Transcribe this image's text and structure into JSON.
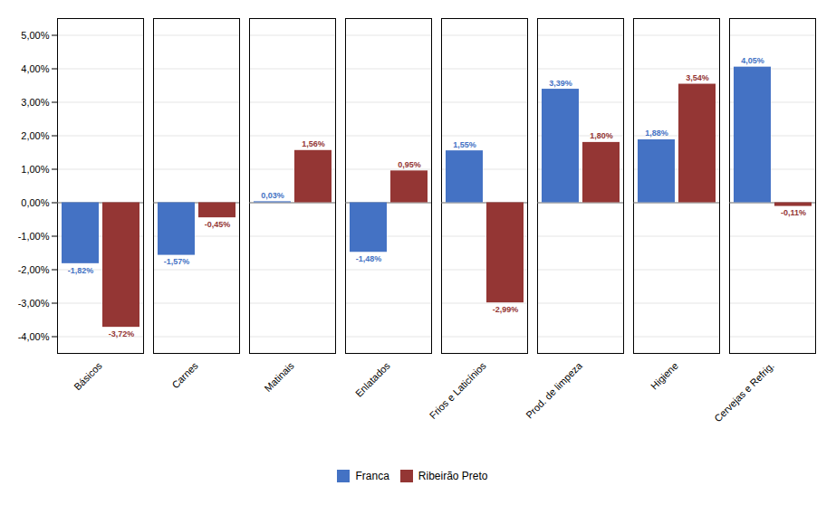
{
  "chart_data": {
    "type": "bar",
    "categories": [
      "Básicos",
      "Carnes",
      "Matinais",
      "Enlatados",
      "Frios e Laticínios",
      "Prod. de limpeza",
      "Higiene",
      "Cervejas e Refrig."
    ],
    "series": [
      {
        "name": "Franca",
        "color": "#4472C4",
        "values": [
          -1.82,
          -1.57,
          0.03,
          -1.48,
          1.55,
          3.39,
          1.88,
          4.05
        ],
        "value_labels": [
          "-1,82%",
          "-1,57%",
          "0,03%",
          "-1,48%",
          "1,55%",
          "3,39%",
          "1,88%",
          "4,05%"
        ]
      },
      {
        "name": "Ribeirão Preto",
        "color": "#943634",
        "values": [
          -3.72,
          -0.45,
          1.56,
          0.95,
          -2.99,
          1.8,
          3.54,
          -0.11
        ],
        "value_labels": [
          "-3,72%",
          "-0,45%",
          "1,56%",
          "0,95%",
          "-2,99%",
          "1,80%",
          "3,54%",
          "-0,11%"
        ]
      }
    ],
    "ylim": [
      -4.5,
      5.5
    ],
    "yticks": [
      {
        "value": -4.0,
        "label": "-4,00%"
      },
      {
        "value": -3.0,
        "label": "-3,00%"
      },
      {
        "value": -2.0,
        "label": "-2,00%"
      },
      {
        "value": -1.0,
        "label": "-1,00%"
      },
      {
        "value": 0.0,
        "label": "0,00%"
      },
      {
        "value": 1.0,
        "label": "1,00%"
      },
      {
        "value": 2.0,
        "label": "2,00%"
      },
      {
        "value": 3.0,
        "label": "3,00%"
      },
      {
        "value": 4.0,
        "label": "4,00%"
      },
      {
        "value": 5.0,
        "label": "5,00%"
      }
    ],
    "grid": true,
    "data_labels": true,
    "legend": "bottom"
  }
}
